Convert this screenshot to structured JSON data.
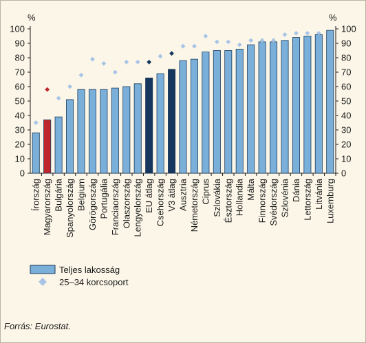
{
  "chart_data": {
    "type": "bar",
    "ylim": [
      0,
      100
    ],
    "yticks": [
      0,
      10,
      20,
      30,
      40,
      50,
      60,
      70,
      80,
      90,
      100
    ],
    "y_unit_left": "%",
    "y_unit_right": "%",
    "categories": [
      "Írország",
      "Magyarország",
      "Bulgária",
      "Spanyolország",
      "Belgium",
      "Görögország",
      "Portugália",
      "Franciaország",
      "Olaszország",
      "Lengyelország",
      "EU átlag",
      "Csehország",
      "V3 átlag",
      "Ausztria",
      "Németország",
      "Ciprus",
      "Szlovákia",
      "Észtország",
      "Hollandia",
      "Málta",
      "Finnország",
      "Svédország",
      "Szlovénia",
      "Dánia",
      "Lettország",
      "Litvánia",
      "Luxemburg"
    ],
    "series": [
      {
        "name": "Teljes lakosság",
        "type": "bar",
        "values": [
          28,
          37,
          39,
          51,
          58,
          58,
          58,
          59,
          60,
          62,
          66,
          69,
          72,
          78,
          79,
          84,
          85,
          85,
          86,
          89,
          91,
          91,
          92,
          94,
          95,
          96,
          99
        ],
        "color": "#7aafd9",
        "highlight_colors": {
          "Magyarország": "#c0272d",
          "EU átlag": "#16365e",
          "V3 átlag": "#16365e"
        }
      },
      {
        "name": "25–34 korcsoport",
        "type": "scatter",
        "values": [
          35,
          58,
          52,
          60,
          68,
          79,
          76,
          70,
          77,
          77,
          77,
          81,
          83,
          88,
          88,
          95,
          91,
          91,
          89,
          92,
          92,
          92,
          96,
          97,
          97,
          97,
          null
        ],
        "color": "#a8c4e6",
        "highlight_colors": {
          "Magyarország": "#c0272d",
          "EU átlag": "#16365e",
          "V3 átlag": "#16365e"
        }
      }
    ],
    "legend": {
      "placement": "bottom-left",
      "bar_label": "Teljes lakosság",
      "marker_label": "25–34 korcsoport"
    },
    "grid": false
  },
  "source": "Forrás: Eurostat."
}
